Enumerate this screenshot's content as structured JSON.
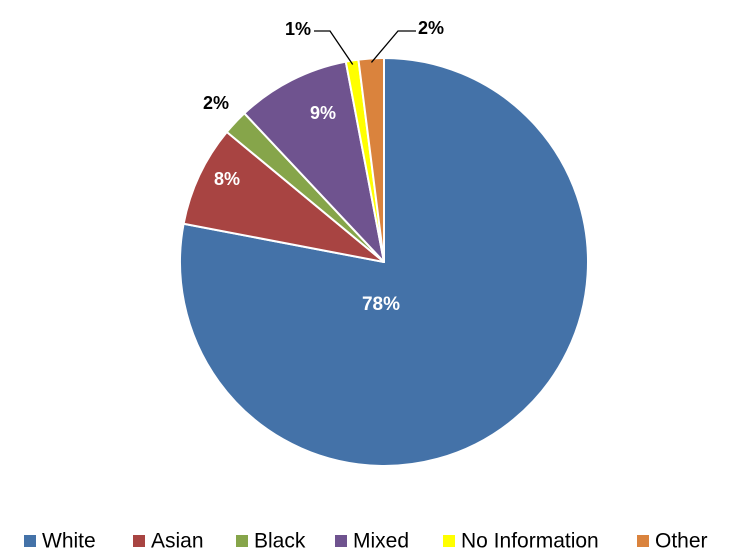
{
  "chart_data": {
    "type": "pie",
    "title": "",
    "slices": [
      {
        "label": "White",
        "value": 78,
        "data_label": "78%",
        "color": "#4472A8"
      },
      {
        "label": "Asian",
        "value": 8,
        "data_label": "8%",
        "color": "#A84442"
      },
      {
        "label": "Black",
        "value": 2,
        "data_label": "2%",
        "color": "#86A54A"
      },
      {
        "label": "Mixed",
        "value": 9,
        "data_label": "9%",
        "color": "#6F538F"
      },
      {
        "label": "No Information",
        "value": 1,
        "data_label": "1%",
        "color": "#FFFF00"
      },
      {
        "label": "Other",
        "value": 2,
        "data_label": "2%",
        "color": "#DA833D"
      }
    ],
    "start_angle_deg": 0,
    "direction": "clockwise",
    "legend_position": "bottom",
    "data_label_styles": [
      {
        "slice_index": 0,
        "placement": "inside",
        "text_color": "#ffffff"
      },
      {
        "slice_index": 1,
        "placement": "inside",
        "text_color": "#ffffff"
      },
      {
        "slice_index": 2,
        "placement": "outside",
        "text_color": "#000000"
      },
      {
        "slice_index": 3,
        "placement": "inside",
        "text_color": "#ffffff"
      },
      {
        "slice_index": 4,
        "placement": "outside-leader",
        "text_color": "#000000"
      },
      {
        "slice_index": 5,
        "placement": "outside-leader",
        "text_color": "#000000"
      }
    ]
  }
}
